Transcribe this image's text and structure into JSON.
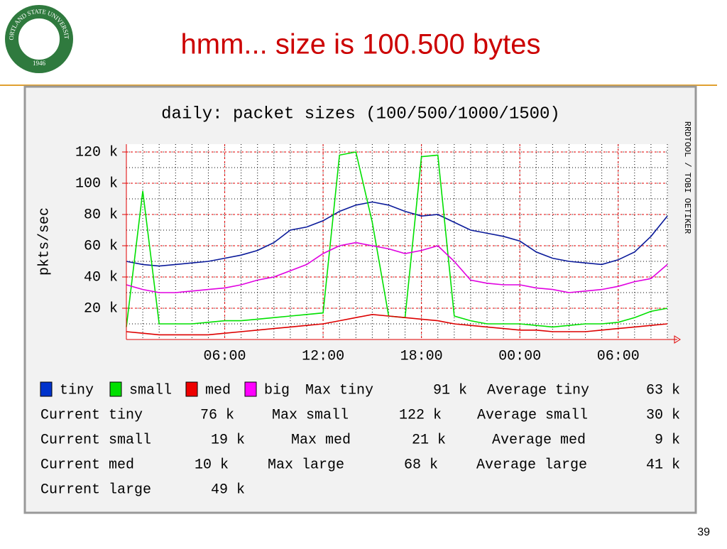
{
  "slide": {
    "title": "hmm... size is 100.500 bytes",
    "page_number": "39",
    "logo": {
      "arc_text": "PORTLAND STATE UNIVERSITY",
      "year": "1946"
    }
  },
  "chart_data": {
    "type": "line",
    "title": "daily: packet sizes (100/500/1000/1500)",
    "ylabel": "pkts/sec",
    "side_text": "RRDTOOL / TOBI OETIKER",
    "x": [
      0,
      1,
      2,
      3,
      4,
      5,
      6,
      7,
      8,
      9,
      10,
      11,
      12,
      13,
      14,
      15,
      16,
      17,
      18,
      19,
      20,
      21,
      22,
      23,
      24,
      25,
      26,
      27,
      28,
      29,
      30,
      31,
      32,
      33
    ],
    "xlim": [
      0,
      33
    ],
    "xticks": [
      {
        "value": 6,
        "label": "06:00"
      },
      {
        "value": 12,
        "label": "12:00"
      },
      {
        "value": 18,
        "label": "18:00"
      },
      {
        "value": 24,
        "label": "00:00"
      },
      {
        "value": 30,
        "label": "06:00"
      }
    ],
    "ylim": [
      0,
      125000
    ],
    "yticks": [
      {
        "value": 20000,
        "label": "20 k"
      },
      {
        "value": 40000,
        "label": "40 k"
      },
      {
        "value": 60000,
        "label": "60 k"
      },
      {
        "value": 80000,
        "label": "80 k"
      },
      {
        "value": 100000,
        "label": "100 k"
      },
      {
        "value": 120000,
        "label": "120 k"
      }
    ],
    "grid": true,
    "series": [
      {
        "name": "tiny",
        "color": "#0a1a9a",
        "legend_color": "#0033cc",
        "values": [
          50000,
          48000,
          47000,
          48000,
          49000,
          50000,
          52000,
          54000,
          57000,
          62000,
          70000,
          72000,
          76000,
          82000,
          86000,
          88000,
          86000,
          82000,
          79000,
          80000,
          75000,
          70000,
          68000,
          66000,
          63000,
          56000,
          52000,
          50000,
          49000,
          48000,
          51000,
          56000,
          66000,
          79000
        ]
      },
      {
        "name": "small",
        "color": "#00e000",
        "legend_color": "#00e000",
        "values": [
          8000,
          95000,
          10000,
          10000,
          10000,
          11000,
          12000,
          12000,
          13000,
          14000,
          15000,
          16000,
          17000,
          118000,
          120000,
          75000,
          15000,
          14000,
          117000,
          118000,
          15000,
          12000,
          10000,
          10000,
          10000,
          9000,
          8000,
          9000,
          10000,
          10000,
          11000,
          14000,
          18000,
          20000
        ]
      },
      {
        "name": "med",
        "color": "#dd0000",
        "legend_color": "#ee0000",
        "values": [
          5000,
          4000,
          3000,
          3000,
          3000,
          3000,
          4000,
          5000,
          6000,
          7000,
          8000,
          9000,
          10000,
          12000,
          14000,
          16000,
          15000,
          14000,
          13000,
          12000,
          10000,
          9000,
          8000,
          7000,
          6000,
          6000,
          5000,
          5000,
          5000,
          6000,
          7000,
          8000,
          9000,
          10000
        ]
      },
      {
        "name": "big",
        "color": "#e000e0",
        "legend_color": "#ff00ff",
        "values": [
          35000,
          32000,
          30000,
          30000,
          31000,
          32000,
          33000,
          35000,
          38000,
          40000,
          44000,
          48000,
          55000,
          60000,
          62000,
          60000,
          58000,
          55000,
          57000,
          60000,
          50000,
          38000,
          36000,
          35000,
          35000,
          33000,
          32000,
          30000,
          31000,
          32000,
          34000,
          37000,
          39000,
          48000
        ]
      }
    ],
    "stats": [
      {
        "label": "Max tiny",
        "value": "91 k"
      },
      {
        "label": "Average tiny",
        "value": "63 k"
      },
      {
        "label": "Current tiny",
        "value": "76 k"
      },
      {
        "label": "Max small",
        "value": "122 k"
      },
      {
        "label": "Average small",
        "value": "30 k"
      },
      {
        "label": "Current small",
        "value": "19 k"
      },
      {
        "label": "Max med",
        "value": "21 k"
      },
      {
        "label": "Average med",
        "value": "9 k"
      },
      {
        "label": "Current med",
        "value": "10 k"
      },
      {
        "label": "Max large",
        "value": "68 k"
      },
      {
        "label": "Average large",
        "value": "41 k"
      },
      {
        "label": "Current large",
        "value": "49 k"
      }
    ]
  }
}
